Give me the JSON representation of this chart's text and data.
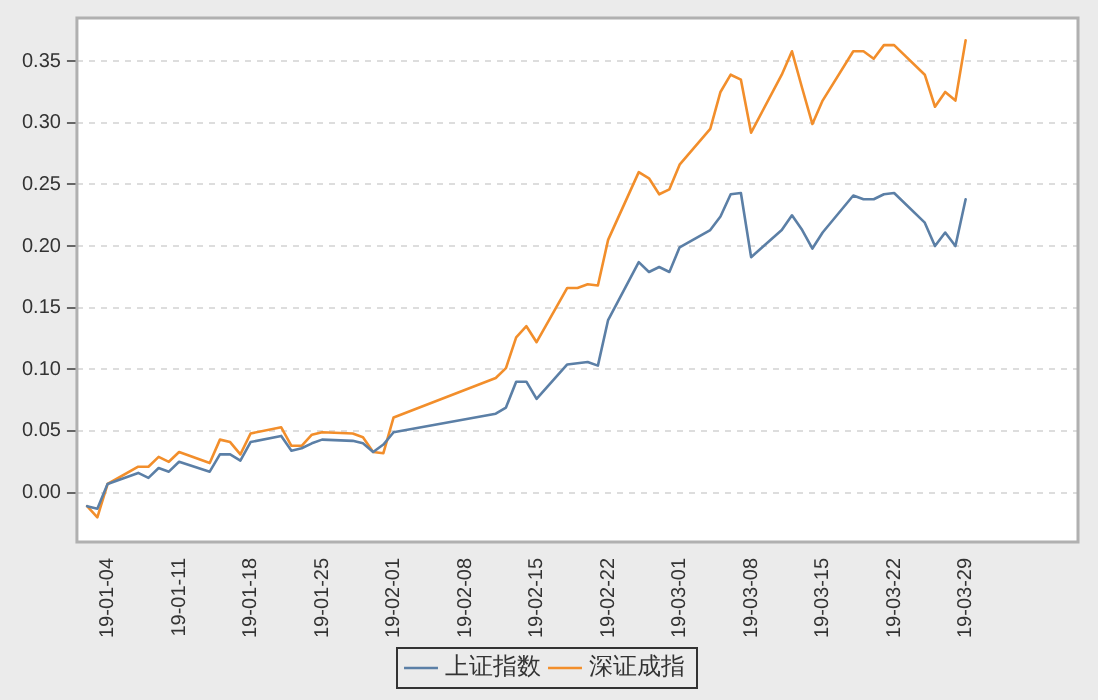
{
  "chart_data": {
    "type": "line",
    "x": [
      "--01-02",
      "--01-03",
      "--01-04",
      "--01-07",
      "--01-08",
      "--01-09",
      "--01-10",
      "--01-11",
      "--01-14",
      "--01-15",
      "--01-16",
      "--01-17",
      "--01-18",
      "--01-21",
      "--01-22",
      "--01-23",
      "--01-24",
      "--01-25",
      "--01-28",
      "--01-29",
      "--01-30",
      "--01-31",
      "--02-01",
      "--02-11",
      "--02-12",
      "--02-13",
      "--02-14",
      "--02-15",
      "--02-18",
      "--02-19",
      "--02-20",
      "--02-21",
      "--02-22",
      "--02-25",
      "--02-26",
      "--02-27",
      "--02-28",
      "--03-01",
      "--03-04",
      "--03-05",
      "--03-06",
      "--03-07",
      "--03-08",
      "--03-11",
      "--03-12",
      "--03-13",
      "--03-14",
      "--03-15",
      "--03-18",
      "--03-19",
      "--03-20",
      "--03-21",
      "--03-22",
      "--03-25",
      "--03-26",
      "--03-27",
      "--03-28",
      "--03-29"
    ],
    "series": [
      {
        "name": "上证指数",
        "color": "#5b7fa6",
        "values": [
          -0.011,
          -0.013,
          0.007,
          0.016,
          0.012,
          0.02,
          0.017,
          0.025,
          0.017,
          0.031,
          0.031,
          0.026,
          0.041,
          0.046,
          0.034,
          0.036,
          0.04,
          0.043,
          0.042,
          0.04,
          0.033,
          0.039,
          0.049,
          0.064,
          0.069,
          0.09,
          0.09,
          0.076,
          0.104,
          0.105,
          0.106,
          0.103,
          0.14,
          0.187,
          0.179,
          0.183,
          0.179,
          0.199,
          0.213,
          0.224,
          0.242,
          0.243,
          0.191,
          0.213,
          0.225,
          0.213,
          0.198,
          0.211,
          0.241,
          0.238,
          0.238,
          0.242,
          0.243,
          0.219,
          0.2,
          0.211,
          0.2,
          0.238
        ]
      },
      {
        "name": "深证成指",
        "color": "#f28e2b",
        "values": [
          -0.011,
          -0.02,
          0.007,
          0.021,
          0.021,
          0.029,
          0.025,
          0.033,
          0.024,
          0.043,
          0.041,
          0.031,
          0.048,
          0.053,
          0.038,
          0.038,
          0.047,
          0.049,
          0.048,
          0.045,
          0.033,
          0.032,
          0.061,
          0.093,
          0.101,
          0.126,
          0.135,
          0.122,
          0.166,
          0.166,
          0.169,
          0.168,
          0.205,
          0.26,
          0.255,
          0.242,
          0.246,
          0.266,
          0.295,
          0.325,
          0.339,
          0.335,
          0.292,
          0.339,
          0.358,
          0.328,
          0.299,
          0.318,
          0.358,
          0.358,
          0.352,
          0.363,
          0.363,
          0.339,
          0.313,
          0.325,
          0.318,
          0.367
        ]
      }
    ],
    "xlim": [
      "--01-01",
      "--04-09"
    ],
    "xticks": [
      {
        "value": "--01-04",
        "label": "19-01-04"
      },
      {
        "value": "--01-11",
        "label": "19-01-11"
      },
      {
        "value": "--01-18",
        "label": "19-01-18"
      },
      {
        "value": "--01-25",
        "label": "19-01-25"
      },
      {
        "value": "--02-01",
        "label": "19-02-01"
      },
      {
        "value": "--02-08",
        "label": "19-02-08"
      },
      {
        "value": "--02-15",
        "label": "19-02-15"
      },
      {
        "value": "--02-22",
        "label": "19-02-22"
      },
      {
        "value": "--03-01",
        "label": "19-03-01"
      },
      {
        "value": "--03-08",
        "label": "19-03-08"
      },
      {
        "value": "--03-15",
        "label": "19-03-15"
      },
      {
        "value": "--03-22",
        "label": "19-03-22"
      },
      {
        "value": "--03-29",
        "label": "19-03-29"
      }
    ],
    "ylim": [
      -0.04,
      0.385
    ],
    "yticks": [
      {
        "value": 0,
        "label": "0.00"
      },
      {
        "value": 0.05,
        "label": "0.05"
      },
      {
        "value": 0.1,
        "label": "0.10"
      },
      {
        "value": 0.15,
        "label": "0.15"
      },
      {
        "value": 0.2,
        "label": "0.20"
      },
      {
        "value": 0.25,
        "label": "0.25"
      },
      {
        "value": 0.3,
        "label": "0.30"
      },
      {
        "value": 0.35,
        "label": "0.35"
      }
    ],
    "grid": "y",
    "legend": "bottom",
    "marker": "none",
    "line_style": "solid"
  }
}
